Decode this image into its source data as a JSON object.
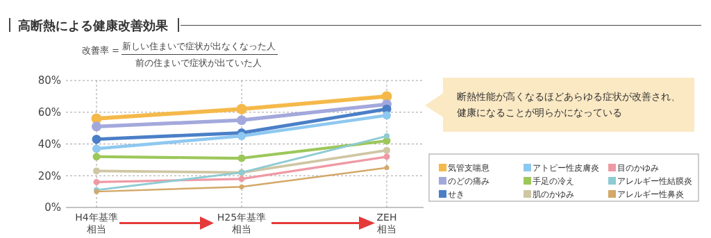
{
  "chart_data": {
    "type": "line",
    "title": "高断熱による健康改善効果",
    "annotations": [
      "改善率 =",
      "新しい住まいで症状が出なくなった人",
      "前の住まいで症状が出ていた人",
      "断熱性能が高くなるほどあらゆる症状が改善され、",
      "健康になることが明らかになっている"
    ],
    "categories": [
      "H4年基準相当",
      "H25年基準相当",
      "ZEH相当"
    ],
    "ylim": [
      0,
      80
    ],
    "yticks": [
      {
        "value": 0,
        "label": "0%"
      },
      {
        "value": 20,
        "label": "20%"
      },
      {
        "value": 40,
        "label": "40%"
      },
      {
        "value": 60,
        "label": "60%"
      },
      {
        "value": 80,
        "label": "80%"
      }
    ],
    "grid": true,
    "legend": "right",
    "marker": "circle",
    "line_style": "solid",
    "series": [
      {
        "name": "気管支喘息",
        "color": "#f5b94a",
        "values": [
          56,
          62,
          70
        ]
      },
      {
        "name": "のどの痛み",
        "color": "#a3a8dc",
        "values": [
          51,
          55,
          65
        ]
      },
      {
        "name": "せき",
        "color": "#4a7fc7",
        "values": [
          43,
          47,
          62
        ]
      },
      {
        "name": "アトピー性皮膚炎",
        "color": "#8ec8f0",
        "values": [
          37,
          45,
          58
        ]
      },
      {
        "name": "手足の冷え",
        "color": "#9cc75a",
        "values": [
          32,
          31,
          42
        ]
      },
      {
        "name": "肌のかゆみ",
        "color": "#cfc6a3",
        "values": [
          23,
          22,
          36
        ]
      },
      {
        "name": "目のかゆみ",
        "color": "#ee9aa5",
        "values": [
          16,
          18,
          32
        ]
      },
      {
        "name": "アレルギー性結膜炎",
        "color": "#8ecbd3",
        "values": [
          11,
          22,
          45
        ]
      },
      {
        "name": "アレルギー性鼻炎",
        "color": "#d3a868",
        "values": [
          10,
          13,
          25
        ]
      }
    ]
  }
}
